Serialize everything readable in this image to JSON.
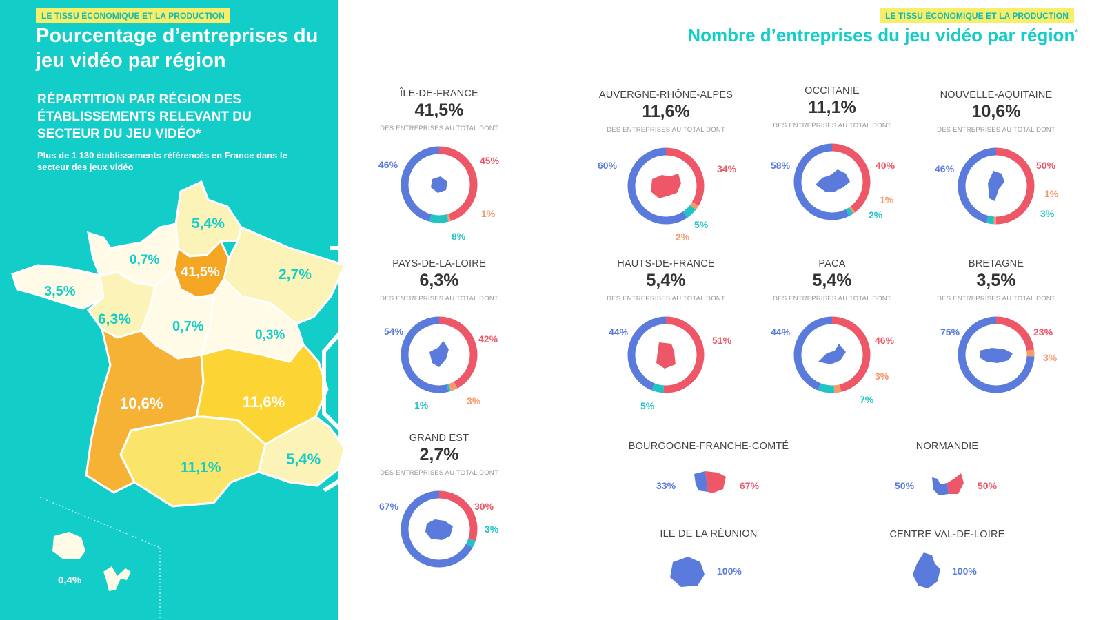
{
  "left": {
    "tag": "LE TISSU ÉCONOMIQUE ET LA PRODUCTION",
    "title": "Pourcentage d’entreprises du jeu vidéo par région",
    "subtitle": "RÉPARTITION PAR RÉGION DES ÉTABLISSEMENTS RELEVANT DU SECTEUR DU JEU VIDÉO*",
    "description": "Plus de 1 130 établissements référencés en France dans le secteur des jeux vidéo",
    "map_labels": {
      "hauts_de_france": "5,4%",
      "normandie": "0,7%",
      "ile_de_france": "41,5%",
      "grand_est": "2,7%",
      "bretagne": "3,5%",
      "pays_de_la_loire": "6,3%",
      "centre_val_de_loire": "0,7%",
      "bourgogne_franche_comte": "0,3%",
      "nouvelle_aquitaine": "10,6%",
      "auvergne_rhone_alpes": "11,6%",
      "occitanie": "11,1%",
      "paca": "5,4%",
      "outre_mer": "0,4%"
    }
  },
  "right": {
    "tag": "LE TISSU ÉCONOMIQUE ET LA PRODUCTION",
    "title": "Nombre d’entreprises du jeu vidéo par région",
    "title_mark": "*",
    "subline": "DES ENTREPRISES AU TOTAL DONT"
  },
  "colors": {
    "blue": "#5b7bdc",
    "red": "#ee5768",
    "orange": "#f59a6a",
    "teal": "#21c4c5"
  },
  "regions": [
    {
      "name": "ÎLE-DE-FRANCE",
      "pct": "41,5%",
      "segments": [
        {
          "label": "45%",
          "value": 45,
          "color": "red"
        },
        {
          "label": "1%",
          "value": 1,
          "color": "orange"
        },
        {
          "label": "8%",
          "value": 8,
          "color": "teal"
        },
        {
          "label": "46%",
          "value": 46,
          "color": "blue"
        }
      ]
    },
    {
      "name": "AUVERGNE-RHÔNE-ALPES",
      "pct": "11,6%",
      "segments": [
        {
          "label": "34%",
          "value": 34,
          "color": "red"
        },
        {
          "label": "2%",
          "value": 2,
          "color": "orange"
        },
        {
          "label": "5%",
          "value": 5,
          "color": "teal"
        },
        {
          "label": "60%",
          "value": 60,
          "color": "blue"
        }
      ]
    },
    {
      "name": "OCCITANIE",
      "pct": "11,1%",
      "segments": [
        {
          "label": "40%",
          "value": 40,
          "color": "red"
        },
        {
          "label": "1%",
          "value": 1,
          "color": "orange"
        },
        {
          "label": "2%",
          "value": 2,
          "color": "teal"
        },
        {
          "label": "58%",
          "value": 58,
          "color": "blue"
        }
      ]
    },
    {
      "name": "NOUVELLE-AQUITAINE",
      "pct": "10,6%",
      "segments": [
        {
          "label": "50%",
          "value": 50,
          "color": "red"
        },
        {
          "label": "1%",
          "value": 1,
          "color": "orange"
        },
        {
          "label": "3%",
          "value": 3,
          "color": "teal"
        },
        {
          "label": "46%",
          "value": 46,
          "color": "blue"
        }
      ]
    },
    {
      "name": "PAYS-DE-LA-LOIRE",
      "pct": "6,3%",
      "segments": [
        {
          "label": "42%",
          "value": 42,
          "color": "red"
        },
        {
          "label": "3%",
          "value": 3,
          "color": "orange"
        },
        {
          "label": "1%",
          "value": 1,
          "color": "teal"
        },
        {
          "label": "54%",
          "value": 54,
          "color": "blue"
        }
      ]
    },
    {
      "name": "HAUTS-DE-FRANCE",
      "pct": "5,4%",
      "segments": [
        {
          "label": "51%",
          "value": 51,
          "color": "red"
        },
        {
          "label": "5%",
          "value": 5,
          "color": "teal"
        },
        {
          "label": "44%",
          "value": 44,
          "color": "blue"
        }
      ]
    },
    {
      "name": "PACA",
      "pct": "5,4%",
      "segments": [
        {
          "label": "46%",
          "value": 46,
          "color": "red"
        },
        {
          "label": "3%",
          "value": 3,
          "color": "orange"
        },
        {
          "label": "7%",
          "value": 7,
          "color": "teal"
        },
        {
          "label": "44%",
          "value": 44,
          "color": "blue"
        }
      ]
    },
    {
      "name": "BRETAGNE",
      "pct": "3,5%",
      "segments": [
        {
          "label": "23%",
          "value": 23,
          "color": "red"
        },
        {
          "label": "3%",
          "value": 3,
          "color": "orange"
        },
        {
          "label": "75%",
          "value": 75,
          "color": "blue"
        }
      ]
    },
    {
      "name": "GRAND EST",
      "pct": "2,7%",
      "segments": [
        {
          "label": "30%",
          "value": 30,
          "color": "red"
        },
        {
          "label": "3%",
          "value": 3,
          "color": "teal"
        },
        {
          "label": "67%",
          "value": 67,
          "color": "blue"
        }
      ]
    }
  ],
  "small_regions": [
    {
      "name": "BOURGOGNE-FRANCHE-COMTÉ",
      "left": "33%",
      "right": "67%"
    },
    {
      "name": "NORMANDIE",
      "left": "50%",
      "right": "50%"
    },
    {
      "name": "ILE DE LA RÉUNION",
      "value": "100%"
    },
    {
      "name": "CENTRE VAL-DE-LOIRE",
      "value": "100%"
    }
  ]
}
